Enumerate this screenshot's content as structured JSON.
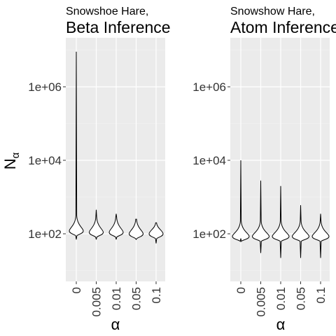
{
  "chart_data": [
    {
      "type": "violin",
      "subtitle": "Snowshoe Hare,",
      "title": "Beta Inference",
      "xlabel": "α",
      "ylabel": "N",
      "ylabel_subscript": "α",
      "yscale": "log10",
      "ylim": [
        5,
        30000000
      ],
      "yticks": [
        100,
        10000,
        1000000
      ],
      "ytick_labels": [
        "1e+02",
        "1e+04",
        "1e+06"
      ],
      "categories": [
        "0",
        "0.005",
        "0.01",
        "0.05",
        "0.1"
      ],
      "violins": [
        {
          "category": "0",
          "min": 70,
          "max": 9000000,
          "mode": 120
        },
        {
          "category": "0.005",
          "min": 70,
          "max": 450,
          "mode": 110
        },
        {
          "category": "0.01",
          "min": 70,
          "max": 350,
          "mode": 110
        },
        {
          "category": "0.05",
          "min": 70,
          "max": 250,
          "mode": 100
        },
        {
          "category": "0.1",
          "min": 55,
          "max": 200,
          "mode": 100
        }
      ]
    },
    {
      "type": "violin",
      "subtitle": "Snowshow Hare,",
      "title": "Atom Inference",
      "xlabel": "α",
      "yscale": "log10",
      "ylim": [
        5,
        30000000
      ],
      "yticks": [
        100,
        10000,
        1000000
      ],
      "ytick_labels": [
        "1e+02",
        "1e+04",
        "1e+06"
      ],
      "categories": [
        "0",
        "0.005",
        "0.01",
        "0.05",
        "0.1"
      ],
      "violins": [
        {
          "category": "0",
          "min": 75,
          "max": 10000,
          "mode": 85
        },
        {
          "category": "0.005",
          "min": 30,
          "max": 2800,
          "mode": 85
        },
        {
          "category": "0.01",
          "min": 22,
          "max": 2000,
          "mode": 85
        },
        {
          "category": "0.05",
          "min": 22,
          "max": 600,
          "mode": 85
        },
        {
          "category": "0.1",
          "min": 22,
          "max": 350,
          "mode": 85
        }
      ]
    }
  ]
}
